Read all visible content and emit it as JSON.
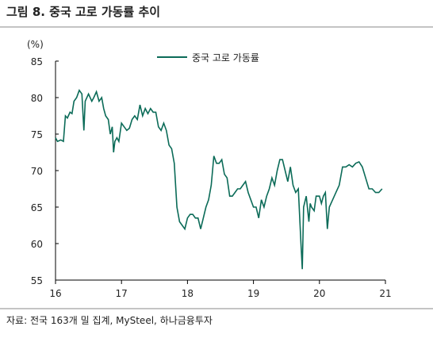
{
  "chart_data": {
    "type": "line",
    "title": "그림 8. 중국 고로 가동률 추이",
    "y_label": "(%)",
    "source": "자료: 전국 163개 밀 집계, MySteel, 하나금융투자",
    "x": [
      16.0,
      16.03,
      16.08,
      16.12,
      16.15,
      16.18,
      16.22,
      16.25,
      16.28,
      16.32,
      16.36,
      16.4,
      16.43,
      16.45,
      16.5,
      16.55,
      16.58,
      16.62,
      16.66,
      16.7,
      16.73,
      16.76,
      16.8,
      16.83,
      16.86,
      16.88,
      16.9,
      16.93,
      16.96,
      17.0,
      17.04,
      17.08,
      17.12,
      17.16,
      17.2,
      17.24,
      17.28,
      17.32,
      17.36,
      17.4,
      17.44,
      17.48,
      17.52,
      17.56,
      17.6,
      17.64,
      17.68,
      17.72,
      17.76,
      17.8,
      17.84,
      17.88,
      17.92,
      17.96,
      18.0,
      18.04,
      18.08,
      18.12,
      18.16,
      18.2,
      18.24,
      18.28,
      18.32,
      18.36,
      18.4,
      18.44,
      18.48,
      18.52,
      18.56,
      18.6,
      18.64,
      18.68,
      18.72,
      18.76,
      18.8,
      18.84,
      18.88,
      18.92,
      18.96,
      19.0,
      19.04,
      19.08,
      19.12,
      19.16,
      19.2,
      19.24,
      19.28,
      19.32,
      19.36,
      19.4,
      19.44,
      19.48,
      19.52,
      19.56,
      19.6,
      19.64,
      19.68,
      19.72,
      19.74,
      19.76,
      19.8,
      19.84,
      19.86,
      19.88,
      19.92,
      19.95,
      20.0,
      20.03,
      20.06,
      20.09,
      20.12,
      20.15,
      20.2,
      20.25,
      20.3,
      20.35,
      20.4,
      20.45,
      20.5,
      20.55,
      20.6,
      20.65,
      20.7,
      20.75,
      20.8,
      20.85,
      20.9,
      20.95
    ],
    "series": [
      {
        "name": "중국 고로 가동률",
        "color": "#0b6b58",
        "values": [
          74.5,
          74.0,
          74.2,
          74.0,
          77.5,
          77.2,
          78.0,
          77.8,
          79.5,
          80.0,
          81.0,
          80.5,
          75.5,
          79.5,
          80.5,
          79.5,
          80.0,
          80.8,
          79.5,
          80.0,
          78.5,
          77.5,
          77.0,
          75.0,
          76.0,
          72.5,
          74.0,
          74.5,
          74.0,
          76.5,
          76.0,
          75.5,
          75.8,
          77.0,
          77.5,
          77.0,
          79.0,
          77.5,
          78.5,
          77.8,
          78.5,
          78.0,
          78.0,
          76.0,
          75.5,
          76.5,
          75.5,
          73.5,
          73.0,
          71.0,
          65.0,
          63.0,
          62.5,
          62.0,
          63.5,
          64.0,
          64.0,
          63.5,
          63.5,
          62.0,
          63.5,
          65.0,
          66.0,
          68.0,
          72.0,
          71.0,
          71.0,
          71.5,
          69.5,
          69.0,
          66.5,
          66.5,
          67.0,
          67.5,
          67.5,
          68.0,
          68.5,
          67.0,
          66.0,
          65.0,
          65.0,
          63.5,
          66.0,
          65.0,
          66.5,
          67.5,
          69.0,
          68.0,
          70.0,
          71.5,
          71.5,
          70.0,
          68.5,
          70.5,
          68.0,
          67.0,
          67.5,
          60.0,
          56.5,
          65.0,
          66.5,
          63.0,
          65.5,
          65.0,
          64.5,
          66.5,
          66.5,
          65.5,
          66.5,
          67.0,
          62.0,
          65.0,
          66.0,
          67.0,
          68.0,
          70.5,
          70.5,
          70.8,
          70.5,
          71.0,
          71.2,
          70.5,
          69.0,
          67.5,
          67.5,
          67.0,
          67.0,
          67.5
        ]
      }
    ],
    "xlim": [
      16,
      21
    ],
    "xticks": [
      16,
      17,
      18,
      19,
      20,
      21
    ],
    "ylim": [
      55,
      85
    ],
    "yticks": [
      55,
      60,
      65,
      70,
      75,
      80,
      85
    ],
    "grid": false,
    "legend": "top"
  }
}
